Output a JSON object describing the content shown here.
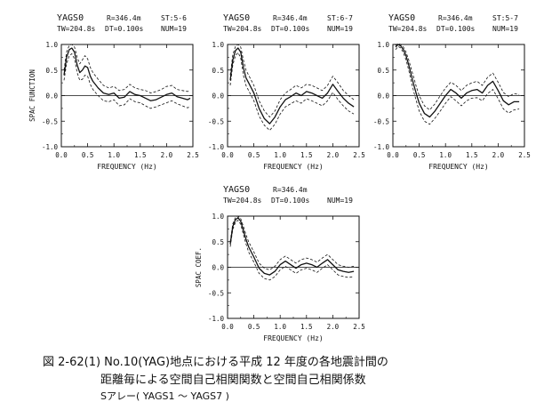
{
  "chart_data": [
    {
      "type": "line",
      "header": {
        "station": "YAGS0",
        "distance": "R=346.4m",
        "stations": "ST:5-6",
        "window": "TW=204.8s",
        "dt": "DT=0.100s",
        "num": "NUM=19"
      },
      "xlabel": "FREQUENCY (Hz)",
      "ylabel": "SPAC FUNCTION",
      "xlim": [
        0,
        2.5
      ],
      "ylim": [
        -1,
        1
      ],
      "xticks": [
        "0.0",
        "0.5",
        "1.0",
        "1.5",
        "2.0",
        "2.5"
      ],
      "yticks": [
        "1.0",
        "0.5",
        "0.0",
        "-0.5",
        "-1.0"
      ],
      "grid": false,
      "series": [
        {
          "role": "mean",
          "style": "solid",
          "x": [
            0.05,
            0.1,
            0.15,
            0.2,
            0.25,
            0.3,
            0.35,
            0.4,
            0.45,
            0.5,
            0.55,
            0.6,
            0.7,
            0.8,
            0.9,
            1.0,
            1.1,
            1.2,
            1.3,
            1.4,
            1.5,
            1.6,
            1.7,
            1.8,
            1.9,
            2.0,
            2.1,
            2.2,
            2.3,
            2.4,
            2.45
          ],
          "y": [
            0.4,
            0.75,
            0.9,
            0.93,
            0.85,
            0.6,
            0.45,
            0.5,
            0.58,
            0.55,
            0.38,
            0.28,
            0.15,
            0.05,
            0.02,
            0.05,
            -0.05,
            -0.03,
            0.08,
            0.02,
            0.0,
            -0.05,
            -0.1,
            -0.08,
            -0.03,
            0.02,
            0.05,
            -0.02,
            -0.05,
            -0.08,
            -0.05
          ]
        },
        {
          "role": "upper",
          "style": "dashed",
          "x": [
            0.05,
            0.1,
            0.15,
            0.2,
            0.25,
            0.3,
            0.35,
            0.4,
            0.45,
            0.5,
            0.55,
            0.6,
            0.7,
            0.8,
            0.9,
            1.0,
            1.1,
            1.2,
            1.3,
            1.4,
            1.5,
            1.6,
            1.7,
            1.8,
            1.9,
            2.0,
            2.1,
            2.2,
            2.3,
            2.4,
            2.45
          ],
          "y": [
            0.5,
            0.85,
            0.98,
            1.0,
            0.95,
            0.75,
            0.62,
            0.7,
            0.78,
            0.72,
            0.55,
            0.45,
            0.32,
            0.2,
            0.15,
            0.18,
            0.1,
            0.12,
            0.22,
            0.15,
            0.12,
            0.1,
            0.05,
            0.08,
            0.12,
            0.18,
            0.2,
            0.12,
            0.1,
            0.08,
            0.1
          ]
        },
        {
          "role": "lower",
          "style": "dashed",
          "x": [
            0.05,
            0.1,
            0.15,
            0.2,
            0.25,
            0.3,
            0.35,
            0.4,
            0.45,
            0.5,
            0.55,
            0.6,
            0.7,
            0.8,
            0.9,
            1.0,
            1.1,
            1.2,
            1.3,
            1.4,
            1.5,
            1.6,
            1.7,
            1.8,
            1.9,
            2.0,
            2.1,
            2.2,
            2.3,
            2.4,
            2.45
          ],
          "y": [
            0.3,
            0.62,
            0.78,
            0.82,
            0.72,
            0.45,
            0.3,
            0.32,
            0.4,
            0.38,
            0.22,
            0.12,
            0.0,
            -0.1,
            -0.12,
            -0.08,
            -0.2,
            -0.18,
            -0.06,
            -0.12,
            -0.14,
            -0.2,
            -0.25,
            -0.22,
            -0.18,
            -0.14,
            -0.1,
            -0.16,
            -0.2,
            -0.24,
            -0.2
          ]
        }
      ]
    },
    {
      "type": "line",
      "header": {
        "station": "YAGS0",
        "distance": "R=346.4m",
        "stations": "ST:6-7",
        "window": "TW=204.8s",
        "dt": "DT=0.100s",
        "num": "NUM=19"
      },
      "xlabel": "FREQUENCY (Hz)",
      "ylabel": "",
      "xlim": [
        0,
        2.5
      ],
      "ylim": [
        -1,
        1
      ],
      "xticks": [
        "0.0",
        "0.5",
        "1.0",
        "1.5",
        "2.0",
        "2.5"
      ],
      "yticks": [
        "1.0",
        "0.5",
        "0.0",
        "-0.5",
        "-1.0"
      ],
      "grid": false,
      "series": [
        {
          "role": "mean",
          "style": "solid",
          "x": [
            0.05,
            0.1,
            0.15,
            0.2,
            0.25,
            0.3,
            0.35,
            0.4,
            0.5,
            0.6,
            0.7,
            0.8,
            0.9,
            1.0,
            1.1,
            1.2,
            1.3,
            1.4,
            1.5,
            1.6,
            1.7,
            1.8,
            1.9,
            2.0,
            2.1,
            2.2,
            2.3,
            2.4
          ],
          "y": [
            0.3,
            0.7,
            0.88,
            0.93,
            0.85,
            0.55,
            0.35,
            0.25,
            0.05,
            -0.25,
            -0.45,
            -0.55,
            -0.42,
            -0.22,
            -0.08,
            -0.02,
            0.05,
            0.0,
            0.08,
            0.05,
            0.0,
            -0.05,
            0.05,
            0.22,
            0.08,
            -0.05,
            -0.15,
            -0.22
          ]
        },
        {
          "role": "upper",
          "style": "dashed",
          "x": [
            0.05,
            0.1,
            0.15,
            0.2,
            0.25,
            0.3,
            0.35,
            0.4,
            0.5,
            0.6,
            0.7,
            0.8,
            0.9,
            1.0,
            1.1,
            1.2,
            1.3,
            1.4,
            1.5,
            1.6,
            1.7,
            1.8,
            1.9,
            2.0,
            2.1,
            2.2,
            2.3,
            2.4
          ],
          "y": [
            0.4,
            0.8,
            0.96,
            1.0,
            0.95,
            0.7,
            0.5,
            0.4,
            0.2,
            -0.1,
            -0.3,
            -0.42,
            -0.3,
            -0.08,
            0.05,
            0.12,
            0.2,
            0.15,
            0.22,
            0.2,
            0.15,
            0.1,
            0.2,
            0.38,
            0.25,
            0.1,
            0.0,
            -0.08
          ]
        },
        {
          "role": "lower",
          "style": "dashed",
          "x": [
            0.05,
            0.1,
            0.15,
            0.2,
            0.25,
            0.3,
            0.35,
            0.4,
            0.5,
            0.6,
            0.7,
            0.8,
            0.9,
            1.0,
            1.1,
            1.2,
            1.3,
            1.4,
            1.5,
            1.6,
            1.7,
            1.8,
            1.9,
            2.0,
            2.1,
            2.2,
            2.3,
            2.4
          ],
          "y": [
            0.2,
            0.6,
            0.78,
            0.84,
            0.74,
            0.4,
            0.2,
            0.1,
            -0.1,
            -0.4,
            -0.58,
            -0.68,
            -0.56,
            -0.36,
            -0.22,
            -0.16,
            -0.1,
            -0.15,
            -0.06,
            -0.1,
            -0.15,
            -0.2,
            -0.1,
            0.06,
            -0.08,
            -0.2,
            -0.3,
            -0.36
          ]
        }
      ]
    },
    {
      "type": "line",
      "header": {
        "station": "YAGS0",
        "distance": "R=346.4m",
        "stations": "ST:5-7",
        "window": "TW=204.8s",
        "dt": "DT=0.100s",
        "num": "NUM=19"
      },
      "xlabel": "FREQUENCY (Hz)",
      "ylabel": "",
      "xlim": [
        0,
        2.5
      ],
      "ylim": [
        -1,
        1
      ],
      "xticks": [
        "0.0",
        "0.5",
        "1.0",
        "1.5",
        "2.0",
        "2.5"
      ],
      "yticks": [
        "1.0",
        "0.5",
        "0.0",
        "-0.5",
        "-1.0"
      ],
      "grid": false,
      "series": [
        {
          "role": "mean",
          "style": "solid",
          "x": [
            0.05,
            0.1,
            0.15,
            0.2,
            0.25,
            0.3,
            0.35,
            0.4,
            0.45,
            0.5,
            0.6,
            0.7,
            0.8,
            0.9,
            1.0,
            1.1,
            1.2,
            1.3,
            1.4,
            1.5,
            1.6,
            1.7,
            1.8,
            1.9,
            2.0,
            2.1,
            2.2,
            2.3,
            2.4
          ],
          "y": [
            0.95,
            1.0,
            0.97,
            0.9,
            0.78,
            0.6,
            0.4,
            0.2,
            0.02,
            -0.15,
            -0.35,
            -0.42,
            -0.3,
            -0.15,
            0.0,
            0.12,
            0.05,
            -0.05,
            0.05,
            0.1,
            0.12,
            0.05,
            0.2,
            0.28,
            0.1,
            -0.1,
            -0.18,
            -0.12,
            -0.12
          ]
        },
        {
          "role": "upper",
          "style": "dashed",
          "x": [
            0.05,
            0.1,
            0.15,
            0.2,
            0.25,
            0.3,
            0.35,
            0.4,
            0.45,
            0.5,
            0.6,
            0.7,
            0.8,
            0.9,
            1.0,
            1.1,
            1.2,
            1.3,
            1.4,
            1.5,
            1.6,
            1.7,
            1.8,
            1.9,
            2.0,
            2.1,
            2.2,
            2.3,
            2.4
          ],
          "y": [
            0.98,
            1.02,
            1.0,
            0.95,
            0.85,
            0.7,
            0.52,
            0.34,
            0.16,
            0.0,
            -0.2,
            -0.28,
            -0.16,
            0.0,
            0.15,
            0.26,
            0.2,
            0.1,
            0.2,
            0.25,
            0.28,
            0.2,
            0.36,
            0.44,
            0.26,
            0.06,
            -0.02,
            0.04,
            0.02
          ]
        },
        {
          "role": "lower",
          "style": "dashed",
          "x": [
            0.05,
            0.1,
            0.15,
            0.2,
            0.25,
            0.3,
            0.35,
            0.4,
            0.45,
            0.5,
            0.6,
            0.7,
            0.8,
            0.9,
            1.0,
            1.1,
            1.2,
            1.3,
            1.4,
            1.5,
            1.6,
            1.7,
            1.8,
            1.9,
            2.0,
            2.1,
            2.2,
            2.3,
            2.4
          ],
          "y": [
            0.9,
            0.96,
            0.93,
            0.84,
            0.7,
            0.5,
            0.28,
            0.06,
            -0.12,
            -0.3,
            -0.5,
            -0.56,
            -0.44,
            -0.3,
            -0.15,
            -0.02,
            -0.1,
            -0.2,
            -0.1,
            -0.05,
            -0.04,
            -0.1,
            0.04,
            0.12,
            -0.06,
            -0.26,
            -0.34,
            -0.28,
            -0.26
          ]
        }
      ]
    },
    {
      "type": "line",
      "header": {
        "station": "YAGS0",
        "distance": "R=346.4m",
        "stations": "",
        "window": "TW=204.8s",
        "dt": "DT=0.100s",
        "num": "NUM=19"
      },
      "xlabel": "FREQUENCY (Hz)",
      "ylabel": "SPAC COEF.",
      "xlim": [
        0,
        2.5
      ],
      "ylim": [
        -1,
        1
      ],
      "xticks": [
        "0.0",
        "0.5",
        "1.0",
        "1.5",
        "2.0",
        "2.5"
      ],
      "yticks": [
        "1.0",
        "0.5",
        "0.0",
        "-0.5",
        "-1.0"
      ],
      "grid": false,
      "series": [
        {
          "role": "mean",
          "style": "solid",
          "x": [
            0.05,
            0.1,
            0.15,
            0.2,
            0.25,
            0.3,
            0.35,
            0.4,
            0.5,
            0.6,
            0.7,
            0.8,
            0.9,
            1.0,
            1.1,
            1.2,
            1.3,
            1.4,
            1.5,
            1.6,
            1.7,
            1.8,
            1.9,
            2.0,
            2.1,
            2.2,
            2.3,
            2.4
          ],
          "y": [
            0.45,
            0.8,
            0.93,
            0.97,
            0.9,
            0.72,
            0.55,
            0.4,
            0.2,
            -0.02,
            -0.12,
            -0.15,
            -0.08,
            0.05,
            0.12,
            0.05,
            -0.02,
            0.05,
            0.08,
            0.05,
            0.0,
            0.08,
            0.15,
            0.05,
            -0.05,
            -0.08,
            -0.1,
            -0.08
          ]
        },
        {
          "role": "upper",
          "style": "dashed",
          "x": [
            0.05,
            0.1,
            0.15,
            0.2,
            0.25,
            0.3,
            0.35,
            0.4,
            0.5,
            0.6,
            0.7,
            0.8,
            0.9,
            1.0,
            1.1,
            1.2,
            1.3,
            1.4,
            1.5,
            1.6,
            1.7,
            1.8,
            1.9,
            2.0,
            2.1,
            2.2,
            2.3,
            2.4
          ],
          "y": [
            0.5,
            0.85,
            0.97,
            1.0,
            0.95,
            0.8,
            0.64,
            0.5,
            0.3,
            0.08,
            -0.02,
            -0.05,
            0.02,
            0.15,
            0.22,
            0.15,
            0.08,
            0.15,
            0.18,
            0.15,
            0.1,
            0.18,
            0.25,
            0.15,
            0.05,
            0.02,
            0.0,
            0.02
          ]
        },
        {
          "role": "lower",
          "style": "dashed",
          "x": [
            0.05,
            0.1,
            0.15,
            0.2,
            0.25,
            0.3,
            0.35,
            0.4,
            0.5,
            0.6,
            0.7,
            0.8,
            0.9,
            1.0,
            1.1,
            1.2,
            1.3,
            1.4,
            1.5,
            1.6,
            1.7,
            1.8,
            1.9,
            2.0,
            2.1,
            2.2,
            2.3,
            2.4
          ],
          "y": [
            0.4,
            0.74,
            0.88,
            0.92,
            0.84,
            0.64,
            0.46,
            0.3,
            0.1,
            -0.12,
            -0.22,
            -0.25,
            -0.18,
            -0.05,
            0.02,
            -0.05,
            -0.12,
            -0.05,
            -0.02,
            -0.05,
            -0.1,
            -0.02,
            0.05,
            -0.05,
            -0.15,
            -0.18,
            -0.2,
            -0.18
          ]
        }
      ]
    }
  ],
  "caption": {
    "line1": "図 2-62(1)  No.10(YAG)地点における平成 12 年度の各地震計間の",
    "line2": "距離毎による空間自己相関関数と空間自己相関係数",
    "line3": "Sアレー( YAGS1 ～ YAGS7 )"
  }
}
